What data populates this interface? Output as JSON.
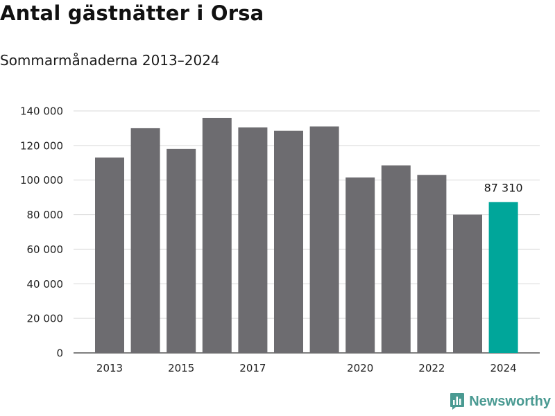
{
  "title": "Antal gästnätter i Orsa",
  "subtitle": "Sommarmånaderna 2013–2024",
  "brand": {
    "name": "Newsworthy",
    "icon": "bar-chart-logo-icon"
  },
  "colors": {
    "bar": "#6d6c70",
    "highlight": "#00a69a",
    "grid": "#d9d9d9",
    "brand": "#4a9a92"
  },
  "chart_data": {
    "type": "bar",
    "title": "Antal gästnätter i Orsa",
    "subtitle": "Sommarmånaderna 2013–2024",
    "categories": [
      "2013",
      "2014",
      "2015",
      "2016",
      "2017",
      "2018",
      "2019",
      "2020",
      "2021",
      "2022",
      "2023",
      "2024"
    ],
    "values": [
      113000,
      130000,
      118000,
      136000,
      130500,
      128500,
      131000,
      101500,
      108500,
      103000,
      80000,
      87310
    ],
    "x_tick_labels": [
      "2013",
      "",
      "2015",
      "",
      "2017",
      "",
      "",
      "2020",
      "",
      "2022",
      "",
      "2024"
    ],
    "y_ticks": [
      0,
      20000,
      40000,
      60000,
      80000,
      100000,
      120000,
      140000
    ],
    "y_tick_labels": [
      "0",
      "20 000",
      "40 000",
      "60 000",
      "80 000",
      "100 000",
      "120 000",
      "140 000"
    ],
    "ylim": [
      0,
      140000
    ],
    "highlight_index": 11,
    "annotation": {
      "index": 11,
      "text": "87 310"
    },
    "grid": true,
    "xlabel": "",
    "ylabel": ""
  }
}
